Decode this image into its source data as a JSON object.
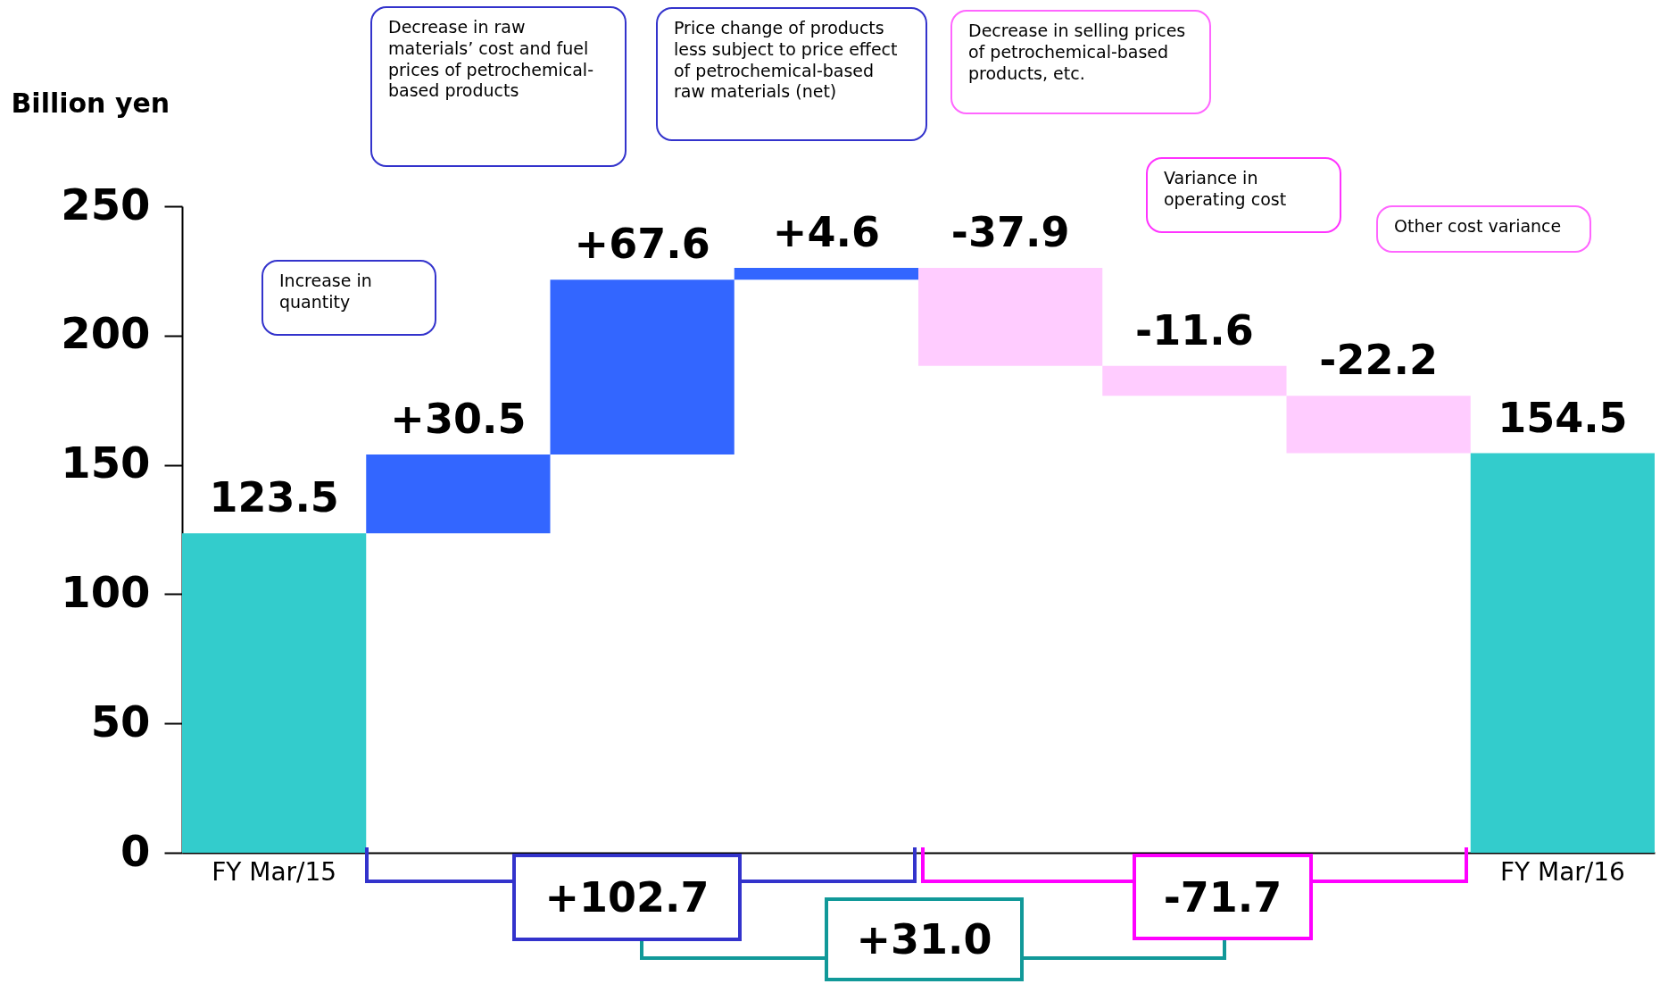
{
  "chart_data": {
    "type": "bar",
    "ylabel": "Billion yen",
    "categories": [
      "FY Mar/15",
      null,
      null,
      null,
      null,
      null,
      null,
      "FY Mar/16"
    ],
    "values": [
      123.5,
      30.5,
      67.6,
      4.6,
      -37.9,
      -11.6,
      -22.2,
      154.5
    ],
    "base": [
      0,
      123.5,
      154,
      221.6,
      226.2,
      188.3,
      176.7,
      0
    ],
    "colors": [
      "#33cccc",
      "#3366ff",
      "#3366ff",
      "#3366ff",
      "#ffccff",
      "#ffccff",
      "#ffccff",
      "#33cccc"
    ],
    "value_labels": [
      "123.5",
      "+30.5",
      "+67.6",
      "+4.6",
      "-37.9",
      "-11.6",
      "-22.2",
      "154.5"
    ],
    "ylim": [
      0,
      250
    ],
    "yticks": [
      0,
      50,
      100,
      150,
      200,
      250
    ],
    "grid": false,
    "annotations": [
      "Increase in quantity",
      "Decrease in raw materials’ cost and fuel prices of petrochemical-based products",
      "Price change of products less subject to price effect of petrochemical-based raw materials (net)",
      "Decrease in selling prices of petrochemical-based products, etc.",
      "Variance in operating cost",
      "Other cost variance",
      "+102.7",
      "-71.7",
      "+31.0"
    ]
  }
}
